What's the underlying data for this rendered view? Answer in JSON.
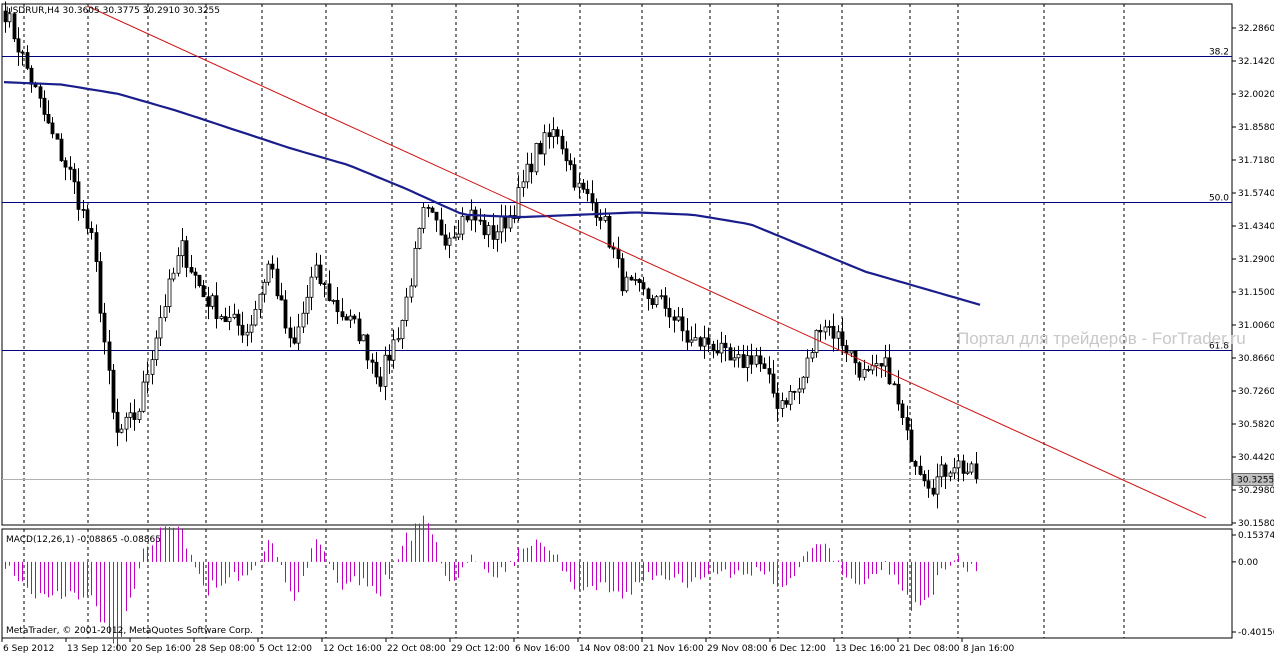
{
  "chart_data": [
    {
      "type": "candlestick",
      "title": "USDRUR,H4  30.3605 30.3775 30.2910 30.3255",
      "symbol": "USDRUR,H4",
      "ohlc_last": {
        "open": "30.3605",
        "high": "30.3775",
        "low": "30.2910",
        "close": "30.3255"
      },
      "last_price_label": "30.3255",
      "last_price": 30.3255,
      "ylim": [
        30.13,
        32.33
      ],
      "y_ticks": [
        "32.2860",
        "32.1420",
        "32.0020",
        "31.8580",
        "31.7180",
        "31.5740",
        "31.4340",
        "31.2900",
        "31.1500",
        "31.0060",
        "30.8660",
        "30.7260",
        "30.5820",
        "30.4420",
        "30.2980",
        "30.1580"
      ],
      "x_ticks": [
        "6 Sep 2012",
        "13 Sep 12:00",
        "20 Sep 16:00",
        "28 Sep 08:00",
        "5 Oct 12:00",
        "12 Oct 16:00",
        "22 Oct 08:00",
        "29 Oct 12:00",
        "6 Nov 16:00",
        "14 Nov 08:00",
        "21 Nov 16:00",
        "29 Nov 08:00",
        "6 Dec 12:00",
        "13 Dec 16:00",
        "21 Dec 08:00",
        "8 Jan 16:00"
      ],
      "grid": true,
      "fib_levels": [
        {
          "label": "38.2",
          "value": 32.11
        },
        {
          "label": "50.0",
          "value": 31.495
        },
        {
          "label": "61.8",
          "value": 30.87
        }
      ],
      "trendline": {
        "from_value": 32.32,
        "to_value": 30.16
      },
      "moving_average_anchors": [
        32.0,
        31.99,
        31.95,
        31.88,
        31.8,
        31.72,
        31.65,
        31.55,
        31.44,
        31.43,
        31.44,
        31.45,
        31.44,
        31.4,
        31.3,
        31.2,
        31.13,
        31.06
      ],
      "close_anchors": [
        32.3,
        32.05,
        31.8,
        31.6,
        31.3,
        30.5,
        30.6,
        31.0,
        31.3,
        31.1,
        31.0,
        30.95,
        31.25,
        30.85,
        31.2,
        31.05,
        30.95,
        30.75,
        31.0,
        31.45,
        31.35,
        31.45,
        31.35,
        31.45,
        31.7,
        31.8,
        31.55,
        31.45,
        31.15,
        31.1,
        31.05,
        30.9,
        30.9,
        30.8,
        30.85,
        30.65,
        30.7,
        31.0,
        30.9,
        30.75,
        30.8,
        30.45,
        30.3,
        30.4,
        30.33
      ]
    },
    {
      "type": "bar",
      "title": "MACD(12,26,1) -0.08865 -0.08865",
      "ylim": [
        -0.40156,
        0.15374
      ],
      "y_ticks": [
        "0.15374",
        "0.00",
        "-0.40156"
      ],
      "y_tick_values": [
        0.15374,
        0.0,
        -0.40156
      ],
      "macd_last": -0.08865
    }
  ],
  "watermark": "Портал для трейдеров - ForTrader.ru",
  "copyright": "MetaTrader, © 2001-2012, MetaQuotes Software Corp.",
  "colors": {
    "candle": "#000000",
    "moving_average": "#1a1e8c",
    "trendline": "#d01010",
    "fib_line": "#000080",
    "macd_bar": "#c000c0",
    "grid": "#000000",
    "watermark": "#c8c8c8"
  }
}
